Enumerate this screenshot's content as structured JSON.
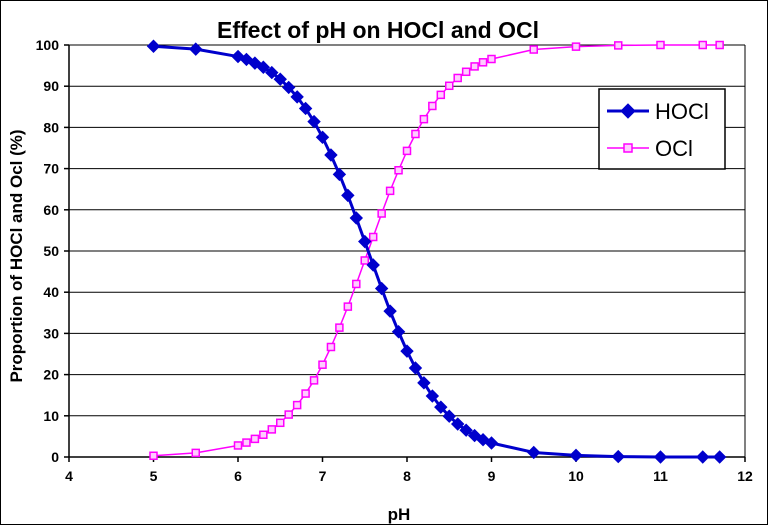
{
  "chart_data": {
    "type": "line",
    "title": "Effect of pH on HOCl and OCl",
    "xlabel": "pH",
    "ylabel": "Proportion of HOCl and Ocl (%)",
    "xlim": [
      4,
      12
    ],
    "ylim": [
      0,
      100
    ],
    "xticks": [
      "4",
      "5",
      "6",
      "7",
      "8",
      "9",
      "10",
      "11",
      "12"
    ],
    "yticks": [
      "0",
      "10",
      "20",
      "30",
      "40",
      "50",
      "60",
      "70",
      "80",
      "90",
      "100"
    ],
    "grid": "horizontal",
    "legend_position": "top-right",
    "series": [
      {
        "name": "HOCl",
        "color": "#0000cc",
        "marker": "diamond",
        "x": [
          5,
          5.5,
          6,
          6.1,
          6.2,
          6.3,
          6.4,
          6.5,
          6.6,
          6.7,
          6.8,
          6.9,
          7,
          7.1,
          7.2,
          7.3,
          7.4,
          7.5,
          7.6,
          7.7,
          7.8,
          7.9,
          8,
          8.1,
          8.2,
          8.3,
          8.4,
          8.5,
          8.6,
          8.7,
          8.8,
          8.9,
          9,
          9.5,
          10,
          10.5,
          11,
          11.5,
          11.7
        ],
        "values": [
          99.7,
          99.0,
          97.2,
          96.5,
          95.6,
          94.6,
          93.3,
          91.7,
          89.7,
          87.4,
          84.6,
          81.4,
          77.6,
          73.3,
          68.6,
          63.5,
          58.0,
          52.3,
          46.6,
          40.9,
          35.4,
          30.4,
          25.7,
          21.6,
          18.0,
          14.8,
          12.1,
          9.9,
          8.0,
          6.5,
          5.2,
          4.2,
          3.4,
          1.1,
          0.4,
          0.1,
          0.0,
          0.0,
          0.0
        ]
      },
      {
        "name": "OCl",
        "color": "#ff00ff",
        "marker": "square",
        "x": [
          5,
          5.5,
          6,
          6.1,
          6.2,
          6.3,
          6.4,
          6.5,
          6.6,
          6.7,
          6.8,
          6.9,
          7,
          7.1,
          7.2,
          7.3,
          7.4,
          7.5,
          7.6,
          7.7,
          7.8,
          7.9,
          8,
          8.1,
          8.2,
          8.3,
          8.4,
          8.5,
          8.6,
          8.7,
          8.8,
          8.9,
          9,
          9.5,
          10,
          10.5,
          11,
          11.5,
          11.7
        ],
        "values": [
          0.3,
          1.0,
          2.8,
          3.5,
          4.4,
          5.4,
          6.7,
          8.3,
          10.3,
          12.6,
          15.4,
          18.6,
          22.4,
          26.7,
          31.4,
          36.5,
          42.0,
          47.7,
          53.4,
          59.1,
          64.6,
          69.6,
          74.3,
          78.4,
          82.0,
          85.2,
          87.9,
          90.1,
          92.0,
          93.5,
          94.8,
          95.8,
          96.6,
          98.9,
          99.6,
          99.9,
          100.0,
          100.0,
          100.0
        ]
      }
    ]
  }
}
